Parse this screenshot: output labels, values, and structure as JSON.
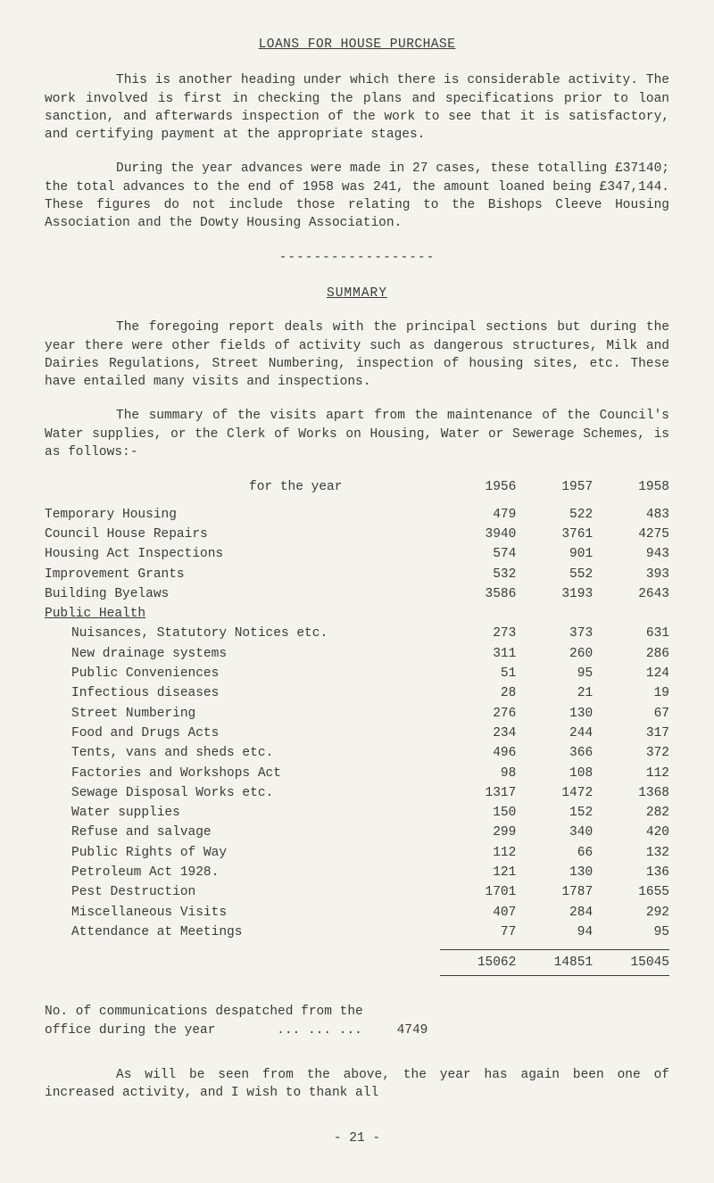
{
  "title": "LOANS FOR HOUSE PURCHASE",
  "para1": "This is another heading under which there is considerable activity. The work involved is first in checking the plans and specifications prior to loan sanction, and afterwards inspection of the work to see that it is satisfactory, and certifying payment at the appropriate stages.",
  "para2": "During the year advances were made in 27 cases, these totalling £37140; the total advances to the end of 1958 was 241, the amount loaned being £347,144. These figures do not include those relating to the Bishops Cleeve Housing Association and the Dowty Housing Association.",
  "divider": "------------------",
  "summaryHeading": "SUMMARY",
  "para3": "The foregoing report deals with the principal sections but during the year there were other fields of activity such as dangerous structures, Milk and Dairies Regulations, Street Numbering, inspection of housing sites, etc. These have entailed many visits and inspections.",
  "para4": "The summary of the visits apart from the maintenance of the Council's Water supplies, or the Clerk of Works on Housing, Water or Sewerage Schemes, is as follows:-",
  "tableHeader": {
    "label": "for the year",
    "c1956": "1956",
    "c1957": "1957",
    "c1958": "1958"
  },
  "rows": [
    {
      "label": "Temporary Housing",
      "c1": "479",
      "c2": "522",
      "c3": "483"
    },
    {
      "label": "Council House Repairs",
      "c1": "3940",
      "c2": "3761",
      "c3": "4275"
    },
    {
      "label": "Housing Act Inspections",
      "c1": "574",
      "c2": "901",
      "c3": "943"
    },
    {
      "label": "Improvement Grants",
      "c1": "532",
      "c2": "552",
      "c3": "393"
    },
    {
      "label": "Building Byelaws",
      "c1": "3586",
      "c2": "3193",
      "c3": "2643"
    },
    {
      "label": "Public Health",
      "underline": true
    },
    {
      "label": "Nuisances, Statutory Notices etc.",
      "c1": "273",
      "c2": "373",
      "c3": "631",
      "indent": true
    },
    {
      "label": "New drainage systems",
      "c1": "311",
      "c2": "260",
      "c3": "286",
      "indent": true
    },
    {
      "label": "Public Conveniences",
      "c1": "51",
      "c2": "95",
      "c3": "124",
      "indent": true
    },
    {
      "label": "Infectious diseases",
      "c1": "28",
      "c2": "21",
      "c3": "19",
      "indent": true
    },
    {
      "label": "Street Numbering",
      "c1": "276",
      "c2": "130",
      "c3": "67",
      "indent": true
    },
    {
      "label": "Food and Drugs Acts",
      "c1": "234",
      "c2": "244",
      "c3": "317",
      "indent": true
    },
    {
      "label": "Tents, vans and sheds etc.",
      "c1": "496",
      "c2": "366",
      "c3": "372",
      "indent": true
    },
    {
      "label": "Factories and Workshops Act",
      "c1": "98",
      "c2": "108",
      "c3": "112",
      "indent": true
    },
    {
      "label": "Sewage Disposal Works etc.",
      "c1": "1317",
      "c2": "1472",
      "c3": "1368",
      "indent": true
    },
    {
      "label": "Water supplies",
      "c1": "150",
      "c2": "152",
      "c3": "282",
      "indent": true
    },
    {
      "label": "Refuse and salvage",
      "c1": "299",
      "c2": "340",
      "c3": "420",
      "indent": true
    },
    {
      "label": "Public Rights of Way",
      "c1": "112",
      "c2": "66",
      "c3": "132",
      "indent": true
    },
    {
      "label": "Petroleum Act 1928.",
      "c1": "121",
      "c2": "130",
      "c3": "136",
      "indent": true
    },
    {
      "label": "Pest Destruction",
      "c1": "1701",
      "c2": "1787",
      "c3": "1655",
      "indent": true
    },
    {
      "label": "Miscellaneous Visits",
      "c1": "407",
      "c2": "284",
      "c3": "292",
      "indent": true
    },
    {
      "label": "Attendance at Meetings",
      "c1": "77",
      "c2": "94",
      "c3": "95",
      "indent": true
    }
  ],
  "totals": {
    "c1": "15062",
    "c2": "14851",
    "c3": "15045"
  },
  "footer1a": "No. of communications despatched from the",
  "footer1b": "office during the year",
  "footer1dots": "...   ...   ...",
  "footer1val": "4749",
  "footer2": "As will be seen from the above, the year has again been one of increased activity, and I wish to thank all",
  "pageNum": "- 21 -"
}
